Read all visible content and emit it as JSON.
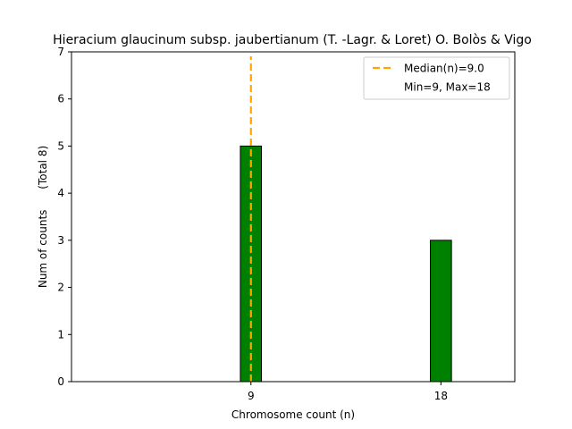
{
  "chart_data": {
    "type": "bar",
    "title": "Hieracium glaucinum subsp. jaubertianum (T. -Lagr. & Loret) O. Bolòs & Vigo",
    "xlabel": "Chromosome count (n)",
    "ylabel": "Num of counts",
    "ylabel_note": "(Total 8)",
    "x": [
      9,
      18
    ],
    "values": [
      5,
      3
    ],
    "xticks": [
      9,
      18
    ],
    "yticks": [
      0,
      1,
      2,
      3,
      4,
      5,
      6,
      7
    ],
    "xlim": [
      0.5,
      21.5
    ],
    "ylim": [
      0,
      7
    ],
    "bar_width": 1.0,
    "bar_color": "#008000",
    "bar_edge_color": "#000000",
    "median": 9.0,
    "median_color": "#ffa500",
    "legend": {
      "placement": "top-right",
      "entries": [
        "Median(n)=9.0",
        "Min=9, Max=18"
      ]
    },
    "grid": false
  }
}
